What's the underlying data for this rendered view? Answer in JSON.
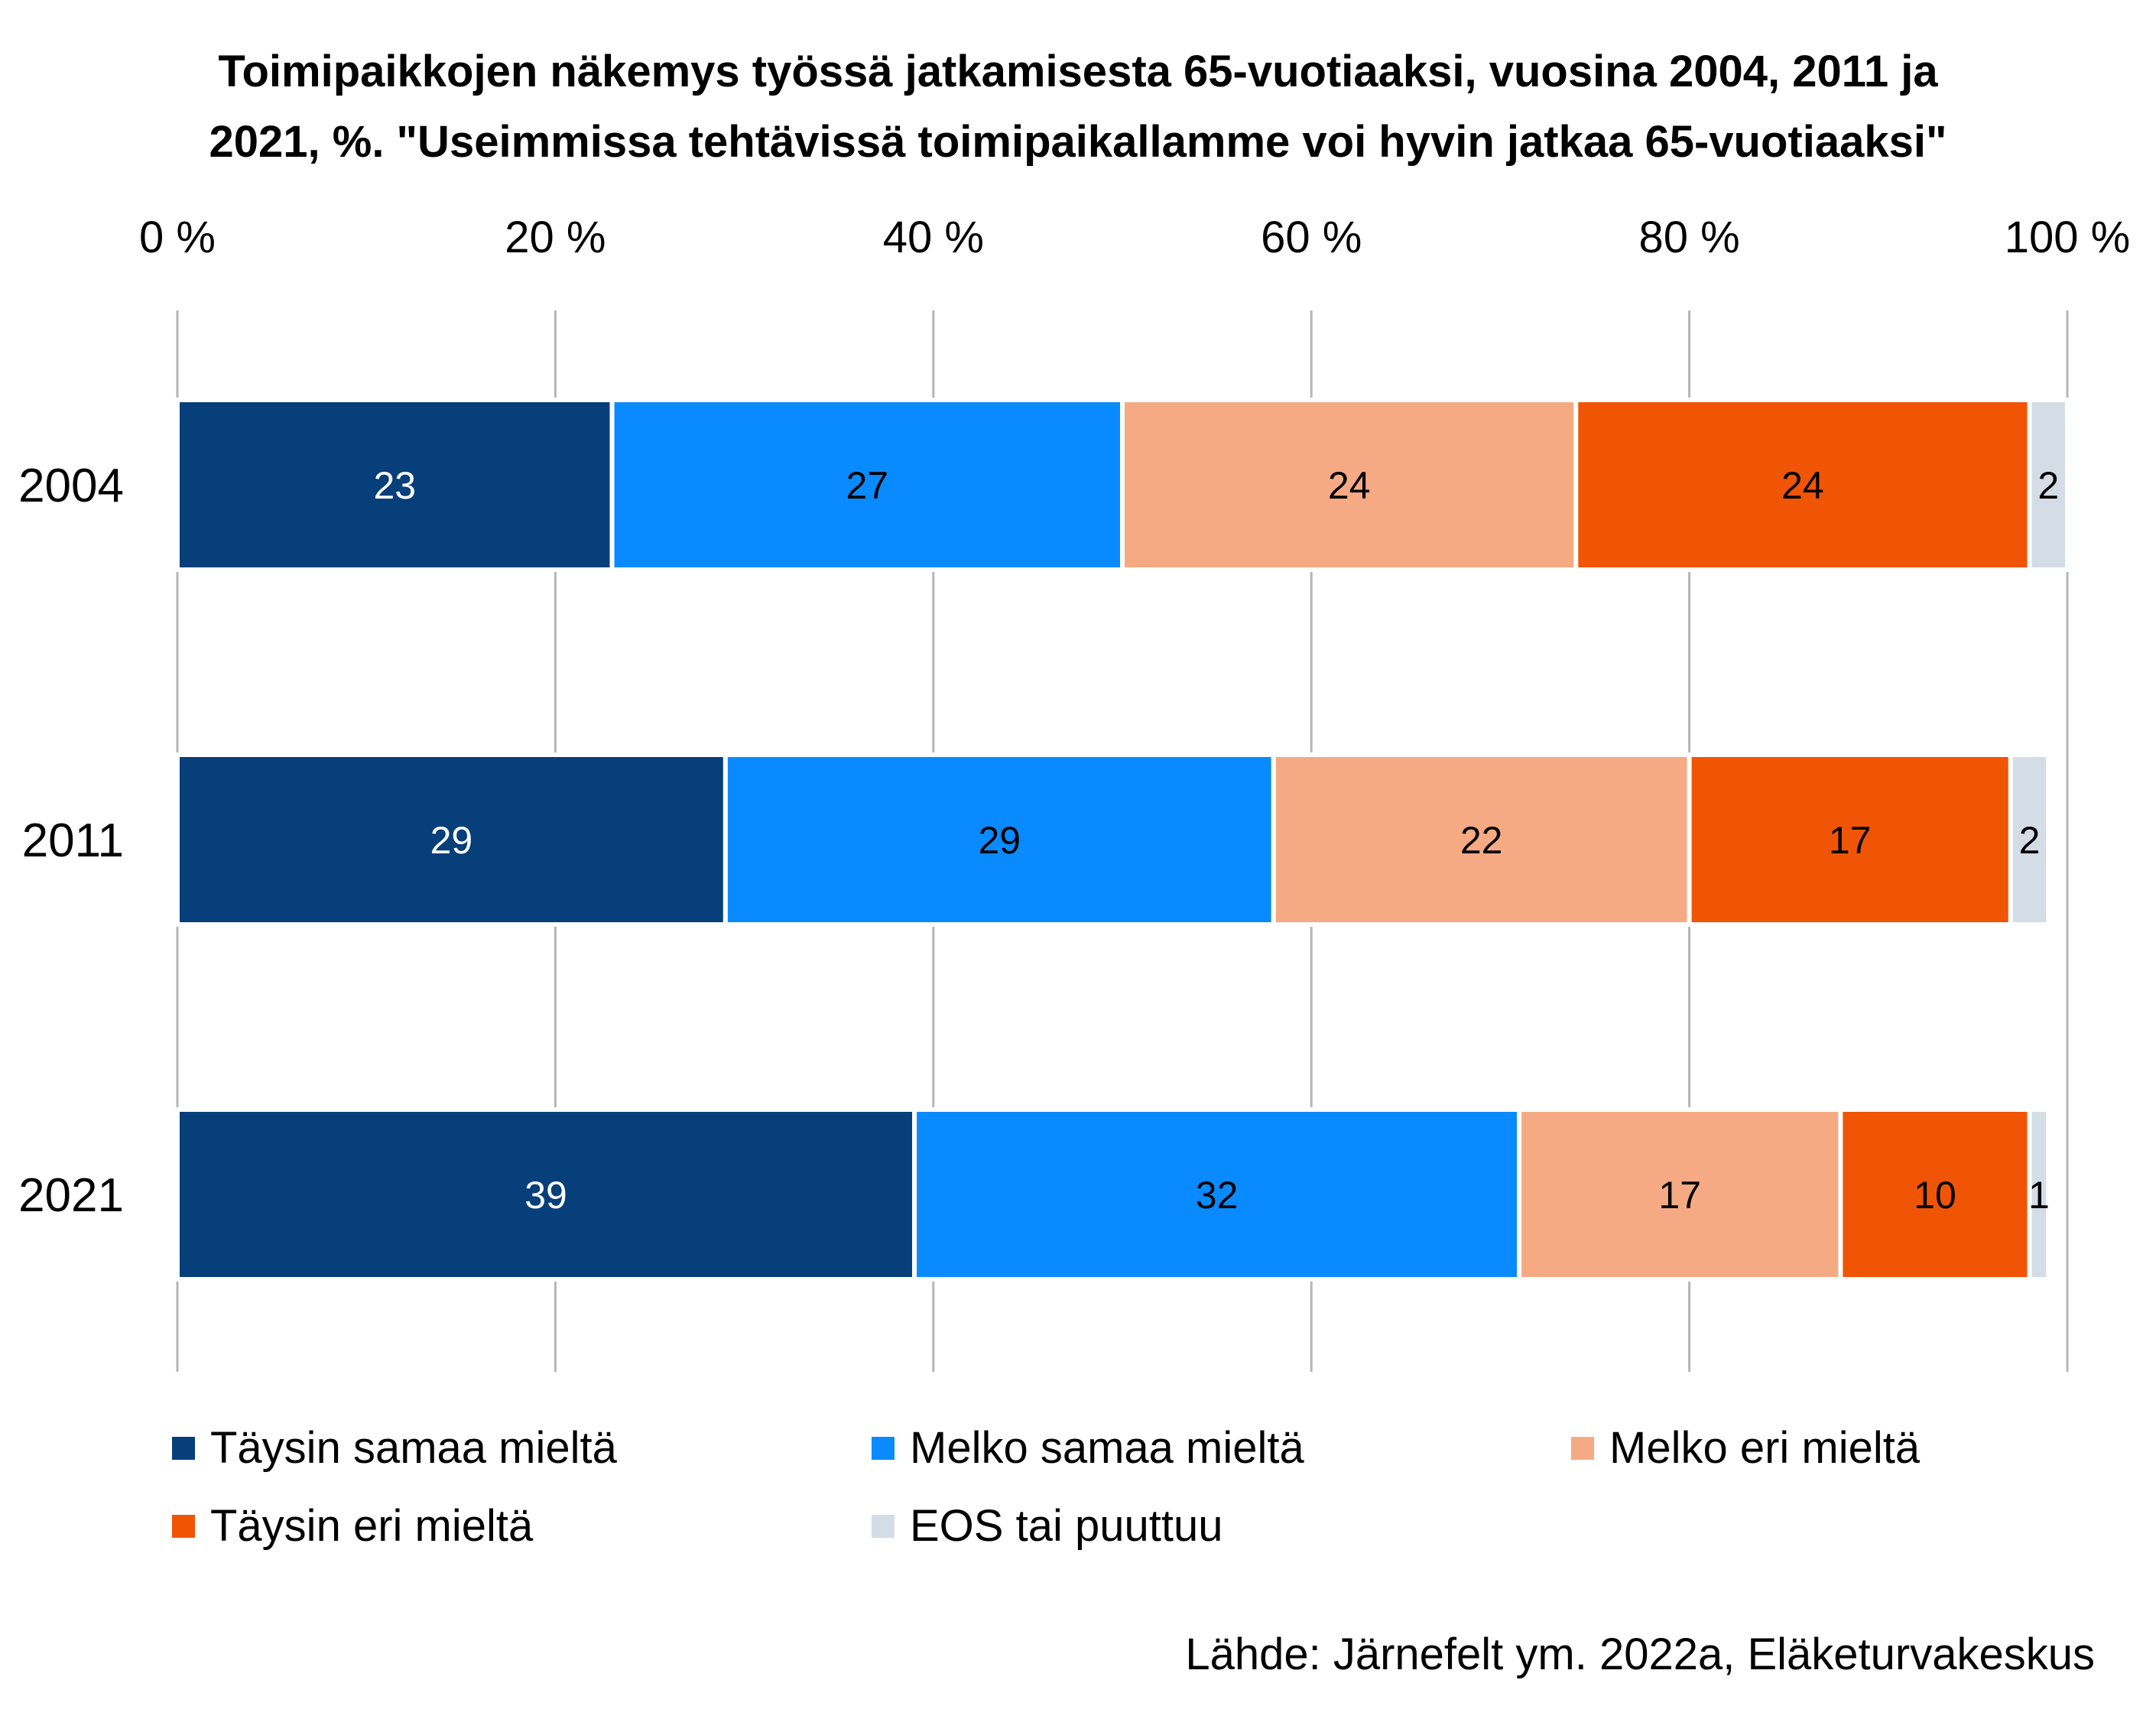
{
  "chart_data": {
    "type": "bar",
    "orientation": "horizontal",
    "stacked": true,
    "title_line1": "Toimipaikkojen näkemys työssä jatkamisesta 65-vuotiaaksi, vuosina 2004, 2011 ja",
    "title_line2": "2021, %. \"Useimmissa tehtävissä toimipaikallamme voi hyvin jatkaa 65-vuotiaaksi\"",
    "categories": [
      "2004",
      "2011",
      "2021"
    ],
    "xlim": [
      0,
      100
    ],
    "xticks": [
      "0 %",
      "20 %",
      "40 %",
      "60 %",
      "80 %",
      "100 %"
    ],
    "grid": true,
    "legend_position": "bottom",
    "series": [
      {
        "name": "Täysin samaa mieltä",
        "values": [
          23,
          29,
          39
        ],
        "color": "#063f7a",
        "label_color": "#ffffff"
      },
      {
        "name": "Melko samaa mieltä",
        "values": [
          27,
          29,
          32
        ],
        "color": "#0a8aff",
        "label_color": "#000000"
      },
      {
        "name": "Melko eri mieltä",
        "values": [
          24,
          22,
          17
        ],
        "color": "#f5aa84",
        "label_color": "#000000"
      },
      {
        "name": "Täysin eri mieltä",
        "values": [
          24,
          17,
          10
        ],
        "color": "#f05505",
        "label_color": "#000000"
      },
      {
        "name": "EOS tai puuttuu",
        "values": [
          2,
          2,
          1
        ],
        "color": "#d4dce6",
        "label_color": "#000000"
      }
    ],
    "source": "Lähde: Järnefelt ym. 2022a, Eläketurvakeskus"
  }
}
